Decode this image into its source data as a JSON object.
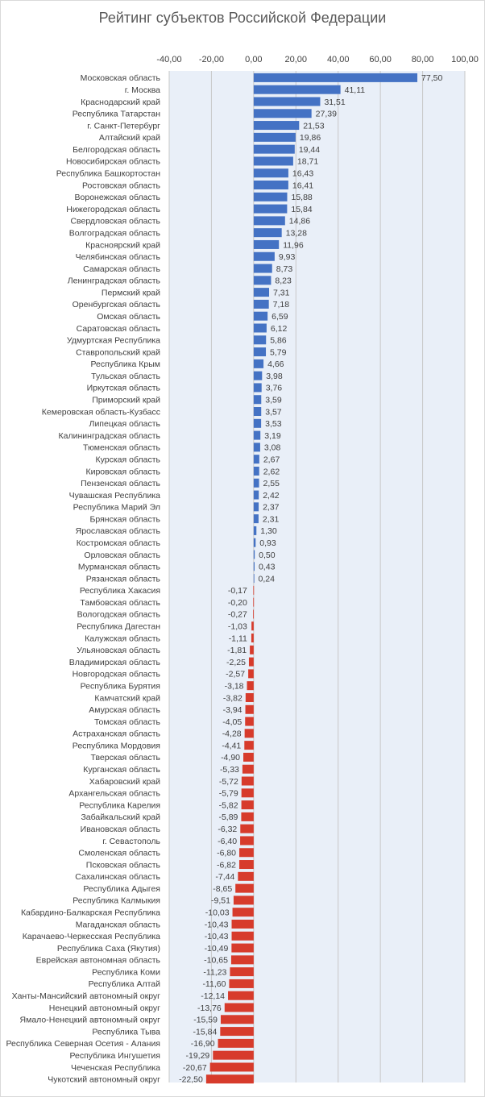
{
  "chart_data": {
    "type": "bar",
    "orientation": "horizontal",
    "title": "Рейтинг субъектов Российской Федерации",
    "xlim": [
      -40,
      100
    ],
    "xticks": [
      -40,
      -20,
      0,
      20,
      40,
      60,
      80,
      100
    ],
    "xtick_labels": [
      "-40,00",
      "-20,00",
      "0,00",
      "20,00",
      "40,00",
      "60,00",
      "80,00",
      "100,00"
    ],
    "axis_position": "top",
    "grid": true,
    "colors": {
      "positive": "#4472C4",
      "negative": "#D73B2C",
      "plot_area": "#E9EFF8",
      "gridline": "#C8C8C8"
    },
    "categories": [
      "Московская область",
      "г. Москва",
      "Краснодарский край",
      "Республика Татарстан",
      "г. Санкт-Петербург",
      "Алтайский край",
      "Белгородская область",
      "Новосибирская область",
      "Республика Башкортостан",
      "Ростовская область",
      "Воронежская область",
      "Нижегородская область",
      "Свердловская область",
      "Волгоградская область",
      "Красноярский край",
      "Челябинская область",
      "Самарская область",
      "Ленинградская область",
      "Пермский край",
      "Оренбургская область",
      "Омская область",
      "Саратовская область",
      "Удмуртская Республика",
      "Ставропольский край",
      "Республика Крым",
      "Тульская область",
      "Иркутская область",
      "Приморский край",
      "Кемеровская область-Кузбасс",
      "Липецкая область",
      "Калининградская область",
      "Тюменская область",
      "Курская область",
      "Кировская область",
      "Пензенская область",
      "Чувашская Республика",
      "Республика Марий Эл",
      "Брянская область",
      "Ярославская область",
      "Костромская область",
      "Орловская область",
      "Мурманская область",
      "Рязанская область",
      "Республика Хакасия",
      "Тамбовская область",
      "Вологодская область",
      "Республика Дагестан",
      "Калужская область",
      "Ульяновская область",
      "Владимирская область",
      "Новгородская область",
      "Республика Бурятия",
      "Камчатский край",
      "Амурская область",
      "Томская область",
      "Астраханская область",
      "Республика Мордовия",
      "Тверская область",
      "Курганская область",
      "Хабаровский край",
      "Архангельская область",
      "Республика Карелия",
      "Забайкальский край",
      "Ивановская область",
      "г. Севастополь",
      "Смоленская область",
      "Псковская область",
      "Сахалинская область",
      "Республика Адыгея",
      "Республика Калмыкия",
      "Кабардино-Балкарская Республика",
      "Магаданская область",
      "Карачаево-Черкесская Республика",
      "Республика Саха (Якутия)",
      "Еврейская автономная область",
      "Республика Коми",
      "Республика Алтай",
      "Ханты-Мансийский автономный округ",
      "Ненецкий автономный округ",
      "Ямало-Ненецкий автономный округ",
      "Республика Тыва",
      "Республика Северная Осетия - Алания",
      "Республика Ингушетия",
      "Чеченская Республика",
      "Чукотский автономный округ"
    ],
    "values": [
      77.5,
      41.11,
      31.51,
      27.39,
      21.53,
      19.86,
      19.44,
      18.71,
      16.43,
      16.41,
      15.88,
      15.84,
      14.86,
      13.28,
      11.96,
      9.93,
      8.73,
      8.23,
      7.31,
      7.18,
      6.59,
      6.12,
      5.86,
      5.79,
      4.66,
      3.98,
      3.76,
      3.59,
      3.57,
      3.53,
      3.19,
      3.08,
      2.67,
      2.62,
      2.55,
      2.42,
      2.37,
      2.31,
      1.3,
      0.93,
      0.5,
      0.43,
      0.24,
      -0.17,
      -0.2,
      -0.27,
      -1.03,
      -1.11,
      -1.81,
      -2.25,
      -2.57,
      -3.18,
      -3.82,
      -3.94,
      -4.05,
      -4.28,
      -4.41,
      -4.9,
      -5.33,
      -5.72,
      -5.79,
      -5.82,
      -5.89,
      -6.32,
      -6.4,
      -6.8,
      -6.82,
      -7.44,
      -8.65,
      -9.51,
      -10.03,
      -10.43,
      -10.43,
      -10.49,
      -10.65,
      -11.23,
      -11.6,
      -12.14,
      -13.76,
      -15.59,
      -15.84,
      -16.9,
      -19.29,
      -20.67,
      -22.5
    ],
    "value_labels": [
      "77,50",
      "41,11",
      "31,51",
      "27,39",
      "21,53",
      "19,86",
      "19,44",
      "18,71",
      "16,43",
      "16,41",
      "15,88",
      "15,84",
      "14,86",
      "13,28",
      "11,96",
      "9,93",
      "8,73",
      "8,23",
      "7,31",
      "7,18",
      "6,59",
      "6,12",
      "5,86",
      "5,79",
      "4,66",
      "3,98",
      "3,76",
      "3,59",
      "3,57",
      "3,53",
      "3,19",
      "3,08",
      "2,67",
      "2,62",
      "2,55",
      "2,42",
      "2,37",
      "2,31",
      "1,30",
      "0,93",
      "0,50",
      "0,43",
      "0,24",
      "-0,17",
      "-0,20",
      "-0,27",
      "-1,03",
      "-1,11",
      "-1,81",
      "-2,25",
      "-2,57",
      "-3,18",
      "-3,82",
      "-3,94",
      "-4,05",
      "-4,28",
      "-4,41",
      "-4,90",
      "-5,33",
      "-5,72",
      "-5,79",
      "-5,82",
      "-5,89",
      "-6,32",
      "-6,40",
      "-6,80",
      "-6,82",
      "-7,44",
      "-8,65",
      "-9,51",
      "-10,03",
      "-10,43",
      "-10,43",
      "-10,49",
      "-10,65",
      "-11,23",
      "-11,60",
      "-12,14",
      "-13,76",
      "-15,59",
      "-15,84",
      "-16,90",
      "-19,29",
      "-20,67",
      "-22,50"
    ]
  }
}
